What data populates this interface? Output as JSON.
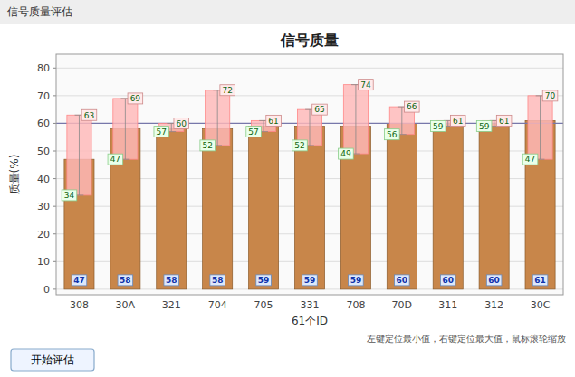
{
  "chart_data": {
    "type": "bar",
    "window_title": "信号质量评估",
    "title": "信号质量",
    "xlabel": "61个ID",
    "ylabel": "质量(%)",
    "categories": [
      "308",
      "30A",
      "321",
      "704",
      "705",
      "331",
      "708",
      "70D",
      "311",
      "312",
      "30C"
    ],
    "values": [
      47,
      58,
      58,
      58,
      59,
      59,
      59,
      60,
      60,
      60,
      61
    ],
    "min_values": [
      34,
      47,
      57,
      52,
      57,
      52,
      49,
      56,
      59,
      59,
      47
    ],
    "max_values": [
      63,
      69,
      60,
      72,
      61,
      65,
      74,
      66,
      61,
      61,
      70
    ],
    "color": "#C8864A",
    "reference_line": 60,
    "ylim": [
      -2,
      85
    ],
    "yticks": [
      0,
      10,
      20,
      30,
      40,
      50,
      60,
      70,
      80
    ],
    "grid": true,
    "data_labels": true,
    "note": "左键定位最小值，右键定位最大值，鼠标滚轮缩放",
    "button_text": "开始评估"
  }
}
